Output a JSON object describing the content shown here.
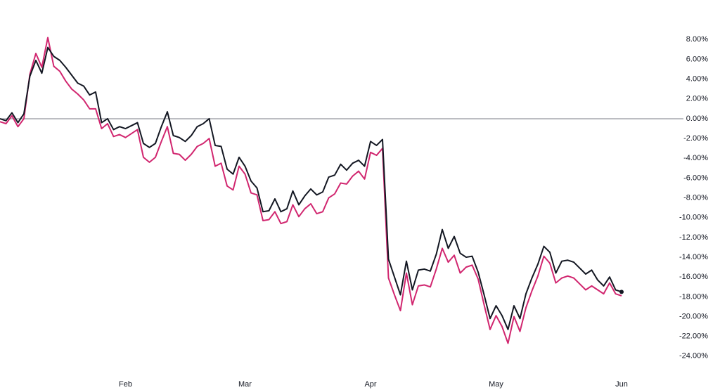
{
  "chart_data": {
    "type": "line",
    "categories": [
      null,
      null,
      null,
      null,
      null,
      null,
      null,
      null,
      null,
      null,
      null,
      null,
      null,
      null,
      null,
      null,
      null,
      null,
      null,
      null,
      null,
      "Feb",
      null,
      null,
      null,
      null,
      null,
      null,
      null,
      null,
      null,
      null,
      null,
      null,
      null,
      null,
      null,
      null,
      null,
      null,
      null,
      "Mar",
      null,
      null,
      null,
      null,
      null,
      null,
      null,
      null,
      null,
      null,
      null,
      null,
      null,
      null,
      null,
      null,
      null,
      null,
      null,
      null,
      "Apr",
      null,
      null,
      null,
      null,
      null,
      null,
      null,
      null,
      null,
      null,
      null,
      null,
      null,
      null,
      null,
      null,
      null,
      null,
      null,
      null,
      "May",
      null,
      null,
      null,
      null,
      null,
      null,
      null,
      null,
      null,
      null,
      null,
      null,
      null,
      null,
      null,
      null,
      null,
      null,
      null,
      null,
      "Jun"
    ],
    "series": [
      {
        "color": "#131722",
        "end_marker": true,
        "values": [
          0,
          -0.2,
          0.6,
          -0.4,
          0.5,
          4.3,
          5.9,
          4.6,
          7.2,
          6.3,
          5.9,
          5.2,
          4.4,
          3.6,
          3.3,
          2.4,
          2.7,
          -0.4,
          0.0,
          -1.1,
          -0.8,
          -1.0,
          -0.7,
          -0.4,
          -2.5,
          -2.9,
          -2.5,
          -0.8,
          0.7,
          -1.7,
          -1.9,
          -2.3,
          -1.7,
          -0.8,
          -0.5,
          0.0,
          -2.7,
          -2.8,
          -5.1,
          -5.6,
          -3.9,
          -4.8,
          -6.3,
          -7.0,
          -9.4,
          -9.3,
          -8.1,
          -9.4,
          -9.1,
          -7.3,
          -8.7,
          -7.8,
          -7.1,
          -7.7,
          -7.4,
          -5.9,
          -5.7,
          -4.6,
          -5.2,
          -4.5,
          -4.2,
          -4.8,
          -2.3,
          -2.7,
          -2.1,
          -14.2,
          -16.0,
          -17.8,
          -14.4,
          -17.3,
          -15.3,
          -15.2,
          -15.4,
          -13.7,
          -11.2,
          -13.1,
          -11.9,
          -13.6,
          -14.0,
          -13.9,
          -15.5,
          -17.8,
          -20.2,
          -18.9,
          -19.9,
          -21.3,
          -18.9,
          -20.2,
          -17.7,
          -16.1,
          -14.7,
          -12.9,
          -13.5,
          -15.6,
          -14.4,
          -14.3,
          -14.5,
          -15.1,
          -15.7,
          -15.3,
          -16.3,
          -16.9,
          -16.0,
          -17.3,
          -17.5
        ]
      },
      {
        "color": "#d1266f",
        "end_marker": false,
        "values": [
          -0.3,
          -0.5,
          0.3,
          -0.8,
          0.0,
          4.5,
          6.6,
          5.2,
          8.2,
          5.3,
          4.8,
          3.8,
          3.0,
          2.5,
          1.9,
          1.0,
          1.0,
          -1.0,
          -0.5,
          -1.8,
          -1.6,
          -1.9,
          -1.5,
          -1.1,
          -3.9,
          -4.4,
          -3.9,
          -2.3,
          -0.8,
          -3.5,
          -3.6,
          -4.2,
          -3.6,
          -2.8,
          -2.5,
          -2.0,
          -4.8,
          -4.5,
          -6.8,
          -7.2,
          -4.8,
          -5.6,
          -7.5,
          -7.7,
          -10.3,
          -10.2,
          -9.4,
          -10.6,
          -10.4,
          -8.7,
          -9.9,
          -9.1,
          -8.6,
          -9.6,
          -9.4,
          -8.0,
          -7.6,
          -6.5,
          -6.6,
          -5.8,
          -5.3,
          -6.1,
          -3.4,
          -3.7,
          -3.0,
          -16.1,
          -17.8,
          -19.4,
          -15.6,
          -18.8,
          -16.9,
          -16.8,
          -17.0,
          -15.2,
          -13.1,
          -14.5,
          -13.8,
          -15.6,
          -15.0,
          -14.8,
          -16.2,
          -18.8,
          -21.3,
          -19.9,
          -21.0,
          -22.7,
          -20.0,
          -21.5,
          -19.1,
          -17.4,
          -15.9,
          -13.9,
          -14.6,
          -16.6,
          -16.1,
          -15.9,
          -16.1,
          -16.7,
          -17.3,
          -16.9,
          -17.3,
          -17.7,
          -16.6,
          -17.7,
          -17.9
        ]
      }
    ],
    "ylim": [
      -26,
      12
    ],
    "yticks": [
      {
        "value": 8,
        "label": "8.00%"
      },
      {
        "value": 6,
        "label": "6.00%"
      },
      {
        "value": 4,
        "label": "4.00%"
      },
      {
        "value": 2,
        "label": "2.00%"
      },
      {
        "value": 0,
        "label": "0.00%"
      },
      {
        "value": -2,
        "label": "-2.00%"
      },
      {
        "value": -4,
        "label": "-4.00%"
      },
      {
        "value": -6,
        "label": "-6.00%"
      },
      {
        "value": -8,
        "label": "-8.00%"
      },
      {
        "value": -10,
        "label": "-10.00%"
      },
      {
        "value": -12,
        "label": "-12.00%"
      },
      {
        "value": -14,
        "label": "-14.00%"
      },
      {
        "value": -16,
        "label": "-16.00%"
      },
      {
        "value": -18,
        "label": "-18.00%"
      },
      {
        "value": -20,
        "label": "-20.00%"
      },
      {
        "value": -22,
        "label": "-22.00%"
      },
      {
        "value": -24,
        "label": "-24.00%"
      }
    ],
    "zero_line": true,
    "grid": false
  }
}
